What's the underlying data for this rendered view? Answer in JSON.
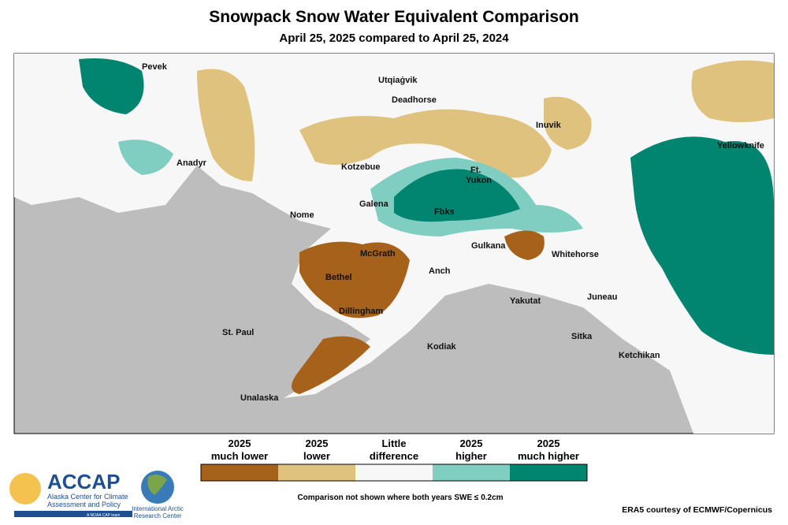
{
  "header": {
    "title": "Snowpack Snow Water Equivalent Comparison",
    "subtitle": "April 25, 2025 compared to April 25, 2024"
  },
  "places": [
    "Pevek",
    "Utqiaġvik",
    "Deadhorse",
    "Inuvik",
    "Yellowknife",
    "Anadyr",
    "Kotzebue",
    "Ft.",
    "Yukon",
    "Nome",
    "Galena",
    "Fbks",
    "Gulkana",
    "Whitehorse",
    "McGrath",
    "Bethel",
    "Anch",
    "Yakutat",
    "Juneau",
    "Dillingham",
    "St. Paul",
    "Kodiak",
    "Sitka",
    "Ketchikan",
    "Unalaska"
  ],
  "legend": {
    "items": [
      {
        "lines": [
          "2025",
          "much lower"
        ],
        "color": "#a6611a"
      },
      {
        "lines": [
          "2025",
          "lower"
        ],
        "color": "#dfc27d"
      },
      {
        "lines": [
          "Little",
          "difference"
        ],
        "color": "#f7f7f7"
      },
      {
        "lines": [
          "2025",
          "higher"
        ],
        "color": "#80cdc1"
      },
      {
        "lines": [
          "2025",
          "much higher"
        ],
        "color": "#018571"
      }
    ],
    "note": "Comparison not shown where both years SWE ≤ 0.2cm"
  },
  "credit": "ERA5 courtesy of ECMWF/Copernicus",
  "logos": {
    "accap": "ACCAP",
    "accap_name": [
      "Alaska Center for Climate",
      "Assessment and Policy"
    ],
    "accap_tag": "A NOAA CAP team",
    "iarc": [
      "International Arctic",
      "Research Center"
    ]
  }
}
